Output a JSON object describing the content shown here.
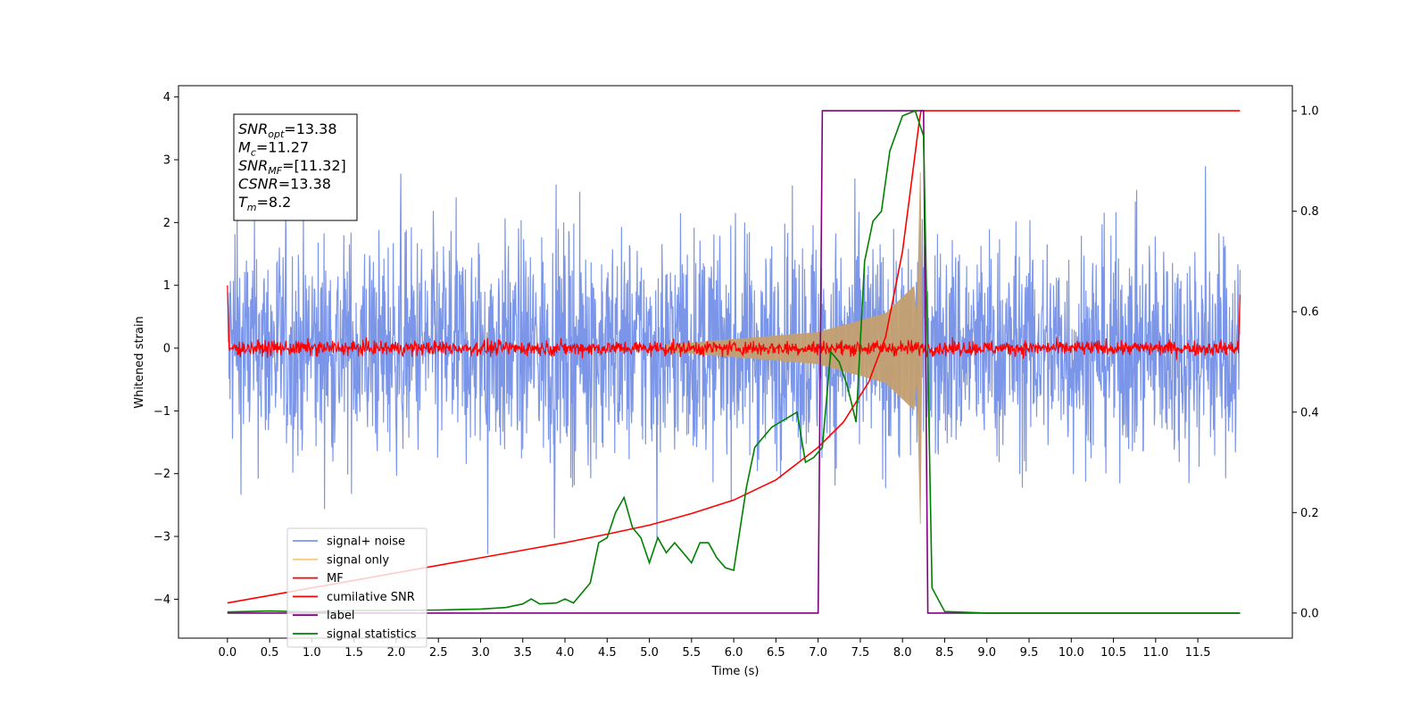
{
  "chart_data": {
    "type": "line",
    "xlabel": "Time (s)",
    "ylabel": "Whitened strain",
    "xlim": [
      -0.58,
      12.62
    ],
    "ylim": [
      -4.62,
      4.18
    ],
    "ylim_right": [
      -0.05,
      1.05
    ],
    "x_ticks": [
      0.0,
      0.5,
      1.0,
      1.5,
      2.0,
      2.5,
      3.0,
      3.5,
      4.0,
      4.5,
      5.0,
      5.5,
      6.0,
      6.5,
      7.0,
      7.5,
      8.0,
      8.5,
      9.0,
      9.5,
      10.0,
      10.5,
      11.0,
      11.5
    ],
    "x_tick_labels": [
      "0.0",
      "0.5",
      "1.0",
      "1.5",
      "2.0",
      "2.5",
      "3.0",
      "3.5",
      "4.0",
      "4.5",
      "5.0",
      "5.5",
      "6.0",
      "6.5",
      "7.0",
      "7.5",
      "8.0",
      "8.5",
      "9.0",
      "9.5",
      "10.0",
      "10.5",
      "11.0",
      "11.5"
    ],
    "y_ticks": [
      -4,
      -3,
      -2,
      -1,
      0,
      1,
      2,
      3,
      4
    ],
    "y_tick_labels": [
      "−4",
      "−3",
      "−2",
      "−1",
      "0",
      "1",
      "2",
      "3",
      "4"
    ],
    "y2_ticks": [
      0.0,
      0.2,
      0.4,
      0.6,
      0.8,
      1.0
    ],
    "y2_tick_labels": [
      "0.0",
      "0.2",
      "0.4",
      "0.6",
      "0.8",
      "1.0"
    ],
    "annotation": [
      {
        "sym": "SNR",
        "sub": "opt",
        "val": "=13.38"
      },
      {
        "sym": "M",
        "sub": "c",
        "val": "=11.27"
      },
      {
        "sym": "SNR",
        "sub": "MF",
        "val": "=[11.32]"
      },
      {
        "sym": "CSNR",
        "sub": "",
        "val": "=13.38"
      },
      {
        "sym": "T",
        "sub": "m",
        "val": "=8.2"
      }
    ],
    "legend_position": "lower-left",
    "legend": [
      {
        "label": "signal+ noise",
        "color": "#7b96e8"
      },
      {
        "label": "signal only",
        "color": "#f5cc80"
      },
      {
        "label": "MF",
        "color": "#ff0000"
      },
      {
        "label": "cumilative SNR",
        "color": "#ff0000"
      },
      {
        "label": "label",
        "color": "#800080"
      },
      {
        "label": "signal statistics",
        "color": "#008000"
      }
    ],
    "series": [
      {
        "name": "signal+ noise",
        "axis": "left",
        "color": "#7b96e8",
        "kind": "noise band",
        "x_range": [
          0.0,
          12.0
        ],
        "envelope_min": -3.6,
        "envelope_max": 3.8,
        "typical_abs": 1.3
      },
      {
        "name": "signal only",
        "axis": "left",
        "color": "#c4a070",
        "kind": "chirp",
        "x_range": [
          5.2,
          8.25
        ],
        "amplitude_at": [
          [
            5.2,
            0.05
          ],
          [
            7.0,
            0.25
          ],
          [
            7.8,
            0.55
          ],
          [
            8.15,
            1.0
          ],
          [
            8.22,
            -3.3
          ]
        ]
      },
      {
        "name": "MF",
        "axis": "left",
        "color": "#ff0000",
        "kind": "noise band",
        "x_range": [
          0.0,
          12.0
        ],
        "typical_abs": 0.12,
        "edge_values": [
          1.0,
          0.85
        ]
      },
      {
        "name": "cumilative SNR",
        "axis": "right",
        "color": "#ff0000",
        "x": [
          0.0,
          0.5,
          1.0,
          1.5,
          2.0,
          2.5,
          3.0,
          3.5,
          4.0,
          4.5,
          5.0,
          5.5,
          6.0,
          6.5,
          7.0,
          7.3,
          7.6,
          7.8,
          8.0,
          8.1,
          8.2,
          8.22,
          12.0
        ],
        "y": [
          0.02,
          0.035,
          0.05,
          0.065,
          0.08,
          0.095,
          0.11,
          0.125,
          0.14,
          0.157,
          0.175,
          0.198,
          0.225,
          0.265,
          0.33,
          0.38,
          0.46,
          0.55,
          0.72,
          0.85,
          0.98,
          1.0,
          1.0
        ]
      },
      {
        "name": "label",
        "axis": "right",
        "color": "#800080",
        "x": [
          0.0,
          7.0,
          7.05,
          8.25,
          8.3,
          12.0
        ],
        "y": [
          0.0,
          0.0,
          1.0,
          1.0,
          0.0,
          0.0
        ]
      },
      {
        "name": "signal statistics",
        "axis": "right",
        "color": "#008000",
        "x": [
          0.0,
          0.5,
          1.0,
          1.5,
          1.9,
          2.5,
          3.0,
          3.3,
          3.5,
          3.6,
          3.7,
          3.9,
          4.0,
          4.1,
          4.3,
          4.4,
          4.5,
          4.6,
          4.7,
          4.8,
          4.9,
          5.0,
          5.1,
          5.2,
          5.3,
          5.4,
          5.5,
          5.6,
          5.7,
          5.8,
          5.9,
          6.0,
          6.15,
          6.25,
          6.35,
          6.45,
          6.55,
          6.65,
          6.75,
          6.85,
          6.95,
          7.05,
          7.15,
          7.25,
          7.35,
          7.45,
          7.55,
          7.65,
          7.75,
          7.85,
          8.0,
          8.15,
          8.25,
          8.35,
          8.5,
          9.0,
          10.0,
          11.0,
          12.0
        ],
        "y": [
          0.002,
          0.004,
          0.002,
          0.005,
          0.005,
          0.006,
          0.008,
          0.011,
          0.018,
          0.028,
          0.018,
          0.02,
          0.028,
          0.02,
          0.06,
          0.14,
          0.15,
          0.2,
          0.23,
          0.17,
          0.15,
          0.1,
          0.15,
          0.12,
          0.14,
          0.12,
          0.1,
          0.14,
          0.14,
          0.11,
          0.09,
          0.085,
          0.25,
          0.33,
          0.35,
          0.37,
          0.38,
          0.39,
          0.4,
          0.3,
          0.31,
          0.33,
          0.52,
          0.5,
          0.45,
          0.38,
          0.7,
          0.78,
          0.8,
          0.92,
          0.99,
          1.0,
          0.95,
          0.05,
          0.003,
          0.0,
          0.0,
          0.0,
          0.0
        ]
      }
    ]
  }
}
